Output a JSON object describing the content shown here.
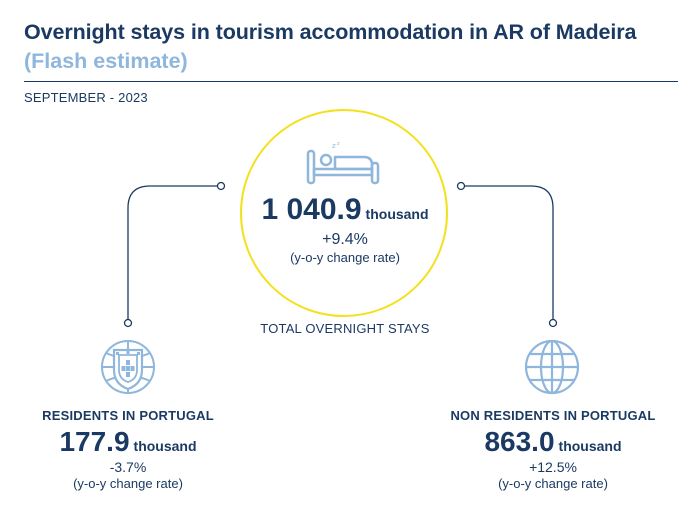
{
  "header": {
    "title": "Overnight stays in tourism accommodation in AR of Madeira",
    "subtitle": "(Flash estimate)",
    "period": "SEPTEMBER - 2023"
  },
  "total": {
    "value": "1 040.9",
    "unit": "thousand",
    "rate": "+9.4%",
    "rate_label": "(y-o-y change rate)",
    "label": "TOTAL OVERNIGHT STAYS",
    "icon": "bed-icon"
  },
  "residents": {
    "label": "RESIDENTS IN PORTUGAL",
    "value": "177.9",
    "unit": "thousand",
    "rate": "-3.7%",
    "rate_label": "(y-o-y change rate)",
    "icon": "portugal-shield-icon"
  },
  "non_residents": {
    "label": "NON RESIDENTS IN PORTUGAL",
    "value": "863.0",
    "unit": "thousand",
    "rate": "+12.5%",
    "rate_label": "(y-o-y change rate)",
    "icon": "globe-icon"
  },
  "colors": {
    "navy": "#1b3a63",
    "light_blue": "#8fb6dc",
    "yellow": "#f3e11f"
  }
}
